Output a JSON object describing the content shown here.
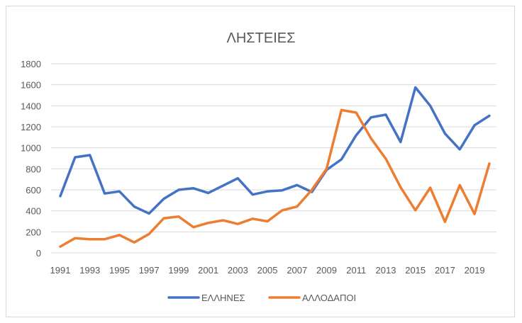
{
  "chart_data": {
    "type": "line",
    "title": "ΛΗΣΤΕΙΕΣ",
    "xlabel": "",
    "ylabel": "",
    "ylim": [
      0,
      1800
    ],
    "yticks": [
      0,
      200,
      400,
      600,
      800,
      1000,
      1200,
      1400,
      1600,
      1800
    ],
    "x": [
      1991,
      1992,
      1993,
      1994,
      1995,
      1996,
      1997,
      1998,
      1999,
      2000,
      2001,
      2002,
      2003,
      2004,
      2005,
      2006,
      2007,
      2008,
      2009,
      2010,
      2011,
      2012,
      2013,
      2014,
      2015,
      2016,
      2017,
      2018,
      2019,
      2020
    ],
    "xtick_labels": [
      "1991",
      "1993",
      "1995",
      "1997",
      "1999",
      "2001",
      "2003",
      "2005",
      "2007",
      "2009",
      "2011",
      "2013",
      "2015",
      "2017",
      "2019"
    ],
    "series": [
      {
        "name": "ΕΛΛΗΝΕΣ",
        "color": "#4472c4",
        "values": [
          540,
          910,
          930,
          565,
          585,
          440,
          375,
          515,
          600,
          615,
          570,
          640,
          710,
          555,
          585,
          595,
          645,
          580,
          790,
          890,
          1120,
          1290,
          1315,
          1055,
          1575,
          1400,
          1135,
          985,
          1215,
          1305
        ]
      },
      {
        "name": "ΑΛΛΟΔΑΠΟΙ",
        "color": "#ed7d31",
        "values": [
          60,
          140,
          130,
          130,
          170,
          100,
          180,
          330,
          345,
          245,
          285,
          310,
          275,
          325,
          300,
          405,
          440,
          600,
          800,
          1360,
          1335,
          1090,
          895,
          625,
          405,
          620,
          295,
          645,
          370,
          850
        ]
      }
    ],
    "grid": true,
    "legend": "bottom"
  }
}
